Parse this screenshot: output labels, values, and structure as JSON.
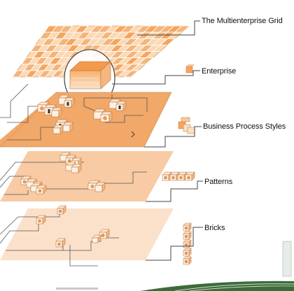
{
  "layers": [
    {
      "id": "grid",
      "label": "The Multienterprise Grid"
    },
    {
      "id": "enterprise",
      "label": "Enterprise"
    },
    {
      "id": "bps",
      "label": "Business Process Styles"
    },
    {
      "id": "patterns",
      "label": "Patterns"
    },
    {
      "id": "bricks",
      "label": "Bricks"
    }
  ],
  "colors": {
    "grid": "#f2a45c",
    "gridLight": "#fbd9b4",
    "bps": "#f1a869",
    "patterns": "#f8cba4",
    "bricks": "#fbe1ca",
    "outline": "#8a8a8a",
    "connector": "#555555",
    "block": "#f6a55e",
    "footerGreen": "#3c6b3a"
  }
}
